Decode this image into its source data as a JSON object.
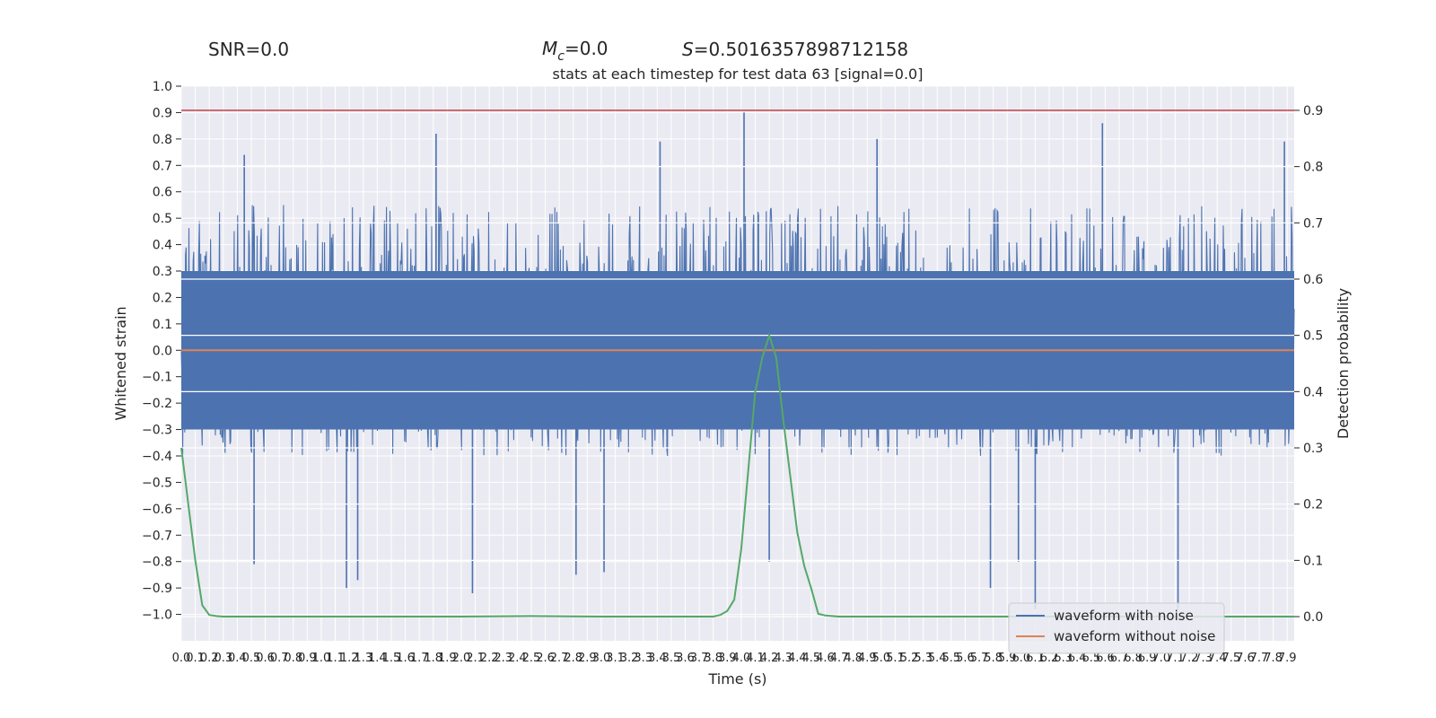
{
  "header": {
    "snr_label": "SNR=0.0",
    "mc_symbol": "M",
    "mc_sub": "c",
    "mc_value": "=0.0",
    "s_symbol": "S",
    "s_value": "=0.5016357898712158"
  },
  "chart_data": {
    "type": "line",
    "title": "stats at each timestep for test data 63 [signal=0.0]",
    "xlabel": "Time (s)",
    "ylabel_left": "Whitened strain",
    "ylabel_right": "Detection probability",
    "xlim": [
      0.0,
      7.95
    ],
    "ylim_left": [
      -1.1,
      1.0
    ],
    "ylim_right": [
      -0.043,
      0.943
    ],
    "grid": true,
    "legend_position": "lower-right",
    "left_ticks": [
      1.0,
      0.9,
      0.8,
      0.7,
      0.6,
      0.5,
      0.4,
      0.3,
      0.2,
      0.1,
      0.0,
      -0.1,
      -0.2,
      -0.3,
      -0.4,
      -0.5,
      -0.6,
      -0.7,
      -0.8,
      -0.9,
      -1.0
    ],
    "left_tick_labels": [
      "1.0",
      "0.9",
      "0.8",
      "0.7",
      "0.6",
      "0.5",
      "0.4",
      "0.3",
      "0.2",
      "0.1",
      "0.0",
      "−0.1",
      "−0.2",
      "−0.3",
      "−0.4",
      "−0.5",
      "−0.6",
      "−0.7",
      "−0.8",
      "−0.9",
      "−1.0"
    ],
    "right_ticks": [
      0.9,
      0.8,
      0.7,
      0.6,
      0.5,
      0.4,
      0.3,
      0.2,
      0.1,
      0.0
    ],
    "right_tick_labels": [
      "0.9",
      "0.8",
      "0.7",
      "0.6",
      "0.5",
      "0.4",
      "0.3",
      "0.2",
      "0.1",
      "0.0"
    ],
    "x_ticks": [
      0.0,
      0.1,
      0.2,
      0.3,
      0.4,
      0.5,
      0.6,
      0.7,
      0.8,
      0.9,
      1.0,
      1.1,
      1.2,
      1.3,
      1.4,
      1.5,
      1.6,
      1.7,
      1.8,
      1.9,
      2.0,
      2.1,
      2.2,
      2.3,
      2.4,
      2.5,
      2.6,
      2.7,
      2.8,
      2.9,
      3.0,
      3.1,
      3.2,
      3.3,
      3.4,
      3.5,
      3.6,
      3.7,
      3.8,
      3.9,
      4.0,
      4.1,
      4.2,
      4.3,
      4.4,
      4.5,
      4.6,
      4.7,
      4.8,
      4.9,
      5.0,
      5.1,
      5.2,
      5.3,
      5.4,
      5.5,
      5.6,
      5.7,
      5.8,
      5.9,
      6.0,
      6.1,
      6.2,
      6.3,
      6.4,
      6.5,
      6.6,
      6.7,
      6.8,
      6.9,
      7.0,
      7.1,
      7.2,
      7.3,
      7.4,
      7.5,
      7.6,
      7.7,
      7.8,
      7.9
    ],
    "x_tick_labels": [
      "0.0",
      "0.1",
      "0.2",
      "0.3",
      "0.4",
      "0.5",
      "0.6",
      "0.7",
      "0.8",
      "0.9",
      "1.0",
      "1.1",
      "1.2",
      "1.3",
      "1.4",
      "1.5",
      "1.6",
      "1.7",
      "1.8",
      "1.9",
      "2.0",
      "2.1",
      "2.2",
      "2.3",
      "2.4",
      "2.5",
      "2.6",
      "2.7",
      "2.8",
      "2.9",
      "3.0",
      "3.1",
      "3.2",
      "3.3",
      "3.4",
      "3.5",
      "3.6",
      "3.7",
      "3.8",
      "3.9",
      "4.0",
      "4.1",
      "4.2",
      "4.3",
      "4.4",
      "4.5",
      "4.6",
      "4.7",
      "4.8",
      "4.9",
      "5.0",
      "5.1",
      "5.2",
      "5.3",
      "5.4",
      "5.5",
      "5.6",
      "5.7",
      "5.8",
      "5.9",
      "6.0",
      "6.1",
      "6.2",
      "6.3",
      "6.4",
      "6.5",
      "6.6",
      "6.7",
      "6.8",
      "6.9",
      "7.0",
      "7.1",
      "7.2",
      "7.3",
      "7.4",
      "7.5",
      "7.6",
      "7.7",
      "7.8",
      "7.9"
    ],
    "series": [
      {
        "name": "waveform with noise",
        "color": "#4c72b0",
        "axis": "left",
        "kind": "noise",
        "typical_range": [
          -0.4,
          0.55
        ],
        "extremes": [
          {
            "x": 0.45,
            "y": 0.74
          },
          {
            "x": 0.52,
            "y": -0.81
          },
          {
            "x": 1.18,
            "y": -0.9
          },
          {
            "x": 1.26,
            "y": -0.87
          },
          {
            "x": 1.82,
            "y": 0.82
          },
          {
            "x": 2.08,
            "y": -0.92
          },
          {
            "x": 2.82,
            "y": -0.85
          },
          {
            "x": 3.02,
            "y": -0.84
          },
          {
            "x": 3.42,
            "y": 0.79
          },
          {
            "x": 4.02,
            "y": 0.9
          },
          {
            "x": 4.2,
            "y": -0.8
          },
          {
            "x": 4.97,
            "y": 0.8
          },
          {
            "x": 5.78,
            "y": -0.9
          },
          {
            "x": 5.98,
            "y": -0.8
          },
          {
            "x": 6.1,
            "y": -0.98
          },
          {
            "x": 6.58,
            "y": 0.86
          },
          {
            "x": 7.12,
            "y": -0.98
          },
          {
            "x": 7.88,
            "y": 0.79
          }
        ]
      },
      {
        "name": "waveform without noise",
        "color": "#dd8452",
        "axis": "left",
        "x": [
          0.0,
          7.95
        ],
        "y": [
          0.0,
          0.0
        ]
      },
      {
        "name": "",
        "color": "#55a868",
        "axis": "right",
        "x": [
          0.0,
          0.05,
          0.1,
          0.15,
          0.2,
          0.25,
          0.3,
          0.4,
          0.5,
          1.0,
          1.5,
          2.0,
          2.5,
          3.0,
          3.5,
          3.8,
          3.85,
          3.9,
          3.95,
          4.0,
          4.05,
          4.1,
          4.15,
          4.2,
          4.25,
          4.3,
          4.35,
          4.4,
          4.45,
          4.5,
          4.55,
          4.6,
          4.7,
          5.0,
          6.0,
          7.0,
          7.95
        ],
        "y": [
          0.3,
          0.2,
          0.1,
          0.02,
          0.003,
          0.001,
          0.0,
          0.0,
          0.0,
          0.0,
          0.0,
          0.0,
          0.001,
          0.0,
          0.0,
          0.0,
          0.003,
          0.01,
          0.03,
          0.12,
          0.26,
          0.4,
          0.46,
          0.5,
          0.46,
          0.35,
          0.25,
          0.15,
          0.09,
          0.05,
          0.005,
          0.002,
          0.0,
          0.0,
          0.0,
          0.0,
          0.0
        ]
      }
    ],
    "threshold": {
      "axis": "right",
      "y": 0.9,
      "color": "#c44e52"
    },
    "legend": [
      "waveform with noise",
      "waveform without noise"
    ]
  }
}
